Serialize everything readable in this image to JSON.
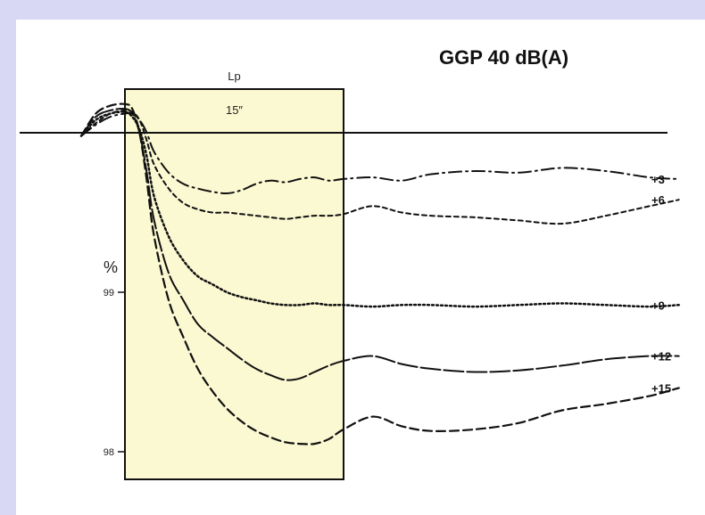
{
  "chart_data": {
    "type": "line",
    "title": "GGP 40 dB(A)",
    "ylabel": "%",
    "y_ticks": [
      99,
      98
    ],
    "ylim": [
      97.95,
      100.2
    ],
    "x_domain": [
      -3,
      40
    ],
    "shaded_region": {
      "label": "Lp",
      "sublabel": "15″",
      "x_start": 0,
      "x_end": 15
    },
    "reference_y": 100,
    "series": [
      {
        "name": "+3",
        "style": "dashdot",
        "x": [
          -3,
          -2,
          -1,
          0,
          0.5,
          1,
          1.5,
          2,
          3,
          4,
          5,
          6,
          7,
          8,
          9,
          10,
          11,
          12,
          13,
          14,
          15,
          17,
          19,
          21,
          24,
          27,
          30,
          33,
          36,
          38
        ],
        "y": [
          99.98,
          100.05,
          100.1,
          100.12,
          100.12,
          100.08,
          100.0,
          99.88,
          99.75,
          99.68,
          99.65,
          99.63,
          99.62,
          99.64,
          99.68,
          99.7,
          99.69,
          99.71,
          99.72,
          99.7,
          99.71,
          99.72,
          99.7,
          99.74,
          99.76,
          99.75,
          99.78,
          99.76,
          99.72,
          99.71
        ]
      },
      {
        "name": "+6",
        "style": "dashed-short",
        "x": [
          -3,
          -2,
          -1,
          0,
          0.5,
          1,
          1.5,
          2,
          3,
          4,
          5,
          6,
          7,
          8,
          9,
          10,
          11,
          12,
          13,
          14,
          15,
          17,
          19,
          21,
          24,
          27,
          30,
          33,
          36,
          38
        ],
        "y": [
          99.98,
          100.06,
          100.12,
          100.14,
          100.13,
          100.08,
          99.95,
          99.8,
          99.65,
          99.56,
          99.52,
          99.5,
          99.5,
          99.49,
          99.48,
          99.47,
          99.46,
          99.47,
          99.48,
          99.48,
          99.49,
          99.54,
          99.5,
          99.48,
          99.47,
          99.45,
          99.43,
          99.48,
          99.54,
          99.58
        ]
      },
      {
        "name": "+9",
        "style": "dotted",
        "x": [
          -3,
          -2,
          -1,
          0,
          0.5,
          1,
          1.5,
          2,
          3,
          4,
          5,
          6,
          7,
          8,
          9,
          10,
          11,
          12,
          13,
          14,
          15,
          17,
          19,
          21,
          24,
          27,
          30,
          33,
          36,
          38
        ],
        "y": [
          99.98,
          100.08,
          100.12,
          100.13,
          100.1,
          100.02,
          99.85,
          99.6,
          99.35,
          99.2,
          99.1,
          99.05,
          99.0,
          98.97,
          98.95,
          98.93,
          98.92,
          98.92,
          98.93,
          98.92,
          98.92,
          98.91,
          98.92,
          98.92,
          98.91,
          98.92,
          98.93,
          98.92,
          98.91,
          98.92
        ]
      },
      {
        "name": "+12",
        "style": "long-dash",
        "x": [
          -3,
          -2,
          -1,
          0,
          0.5,
          1,
          1.5,
          2,
          3,
          4,
          5,
          6,
          7,
          8,
          9,
          10,
          11,
          12,
          13,
          14,
          15,
          17,
          19,
          21,
          24,
          27,
          30,
          33,
          36,
          38
        ],
        "y": [
          99.98,
          100.1,
          100.14,
          100.15,
          100.12,
          100.0,
          99.75,
          99.45,
          99.12,
          98.95,
          98.8,
          98.72,
          98.65,
          98.58,
          98.52,
          98.48,
          98.45,
          98.46,
          98.5,
          98.54,
          98.57,
          98.6,
          98.55,
          98.52,
          98.5,
          98.51,
          98.54,
          98.58,
          98.6,
          98.6
        ]
      },
      {
        "name": "+15",
        "style": "dashed",
        "x": [
          -3,
          -2,
          -1,
          0,
          0.5,
          1,
          1.5,
          2,
          3,
          4,
          5,
          6,
          7,
          8,
          9,
          10,
          11,
          12,
          13,
          14,
          15,
          17,
          19,
          21,
          24,
          27,
          30,
          33,
          36,
          38
        ],
        "y": [
          99.98,
          100.12,
          100.17,
          100.18,
          100.15,
          100.0,
          99.7,
          99.35,
          98.95,
          98.72,
          98.52,
          98.38,
          98.27,
          98.19,
          98.13,
          98.09,
          98.06,
          98.05,
          98.05,
          98.08,
          98.14,
          98.22,
          98.16,
          98.13,
          98.14,
          98.18,
          98.26,
          98.3,
          98.35,
          98.4
        ]
      }
    ]
  }
}
